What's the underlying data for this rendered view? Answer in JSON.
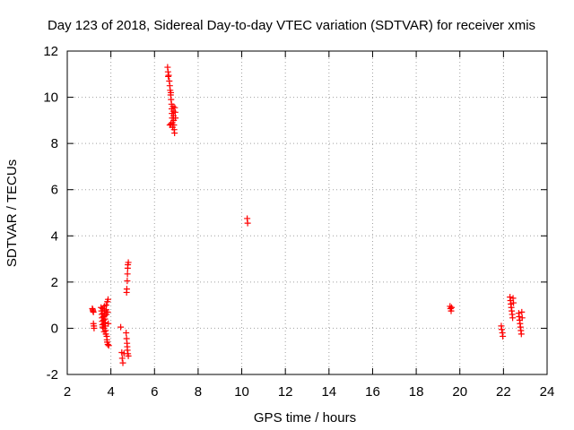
{
  "chart_data": {
    "type": "scatter",
    "title": "Day 123 of 2018, Sidereal Day-to-day VTEC variation (SDTVAR) for receiver xmis",
    "xlabel": "GPS time / hours",
    "ylabel": "SDTVAR / TECUs",
    "xlim": [
      2,
      24
    ],
    "ylim": [
      -2,
      12
    ],
    "xticks": [
      2,
      4,
      6,
      8,
      10,
      12,
      14,
      16,
      18,
      20,
      22,
      24
    ],
    "yticks": [
      -2,
      0,
      2,
      4,
      6,
      8,
      10,
      12
    ],
    "grid": true,
    "marker": "+",
    "color": "#ff0000",
    "series": [
      {
        "name": "SDTVAR",
        "points": [
          [
            3.15,
            0.85
          ],
          [
            3.17,
            0.8
          ],
          [
            3.18,
            0.75
          ],
          [
            3.2,
            0.7
          ],
          [
            3.2,
            0.2
          ],
          [
            3.22,
            0.1
          ],
          [
            3.23,
            0.0
          ],
          [
            3.55,
            0.9
          ],
          [
            3.57,
            0.75
          ],
          [
            3.58,
            0.6
          ],
          [
            3.59,
            0.45
          ],
          [
            3.6,
            0.3
          ],
          [
            3.61,
            0.15
          ],
          [
            3.62,
            0.05
          ],
          [
            3.62,
            0.85
          ],
          [
            3.64,
            0.65
          ],
          [
            3.65,
            0.5
          ],
          [
            3.66,
            0.35
          ],
          [
            3.67,
            0.2
          ],
          [
            3.68,
            0.0
          ],
          [
            3.69,
            -0.15
          ],
          [
            3.7,
            0.95
          ],
          [
            3.71,
            0.75
          ],
          [
            3.72,
            0.55
          ],
          [
            3.73,
            0.4
          ],
          [
            3.74,
            0.25
          ],
          [
            3.75,
            0.1
          ],
          [
            3.76,
            -0.1
          ],
          [
            3.77,
            -0.25
          ],
          [
            3.78,
            1.0
          ],
          [
            3.79,
            0.8
          ],
          [
            3.8,
            0.6
          ],
          [
            3.81,
            -0.35
          ],
          [
            3.82,
            -0.5
          ],
          [
            3.83,
            -0.6
          ],
          [
            3.84,
            1.15
          ],
          [
            3.85,
            0.7
          ],
          [
            3.86,
            -0.7
          ],
          [
            3.87,
            1.25
          ],
          [
            3.88,
            0.2
          ],
          [
            3.9,
            -0.75
          ],
          [
            4.45,
            0.05
          ],
          [
            4.5,
            -1.05
          ],
          [
            4.52,
            -1.3
          ],
          [
            4.55,
            -1.5
          ],
          [
            4.6,
            -1.1
          ],
          [
            4.7,
            -0.2
          ],
          [
            4.72,
            -0.45
          ],
          [
            4.74,
            -0.65
          ],
          [
            4.75,
            -0.8
          ],
          [
            4.76,
            -0.95
          ],
          [
            4.78,
            -1.1
          ],
          [
            4.8,
            -1.2
          ],
          [
            4.72,
            1.55
          ],
          [
            4.73,
            1.7
          ],
          [
            4.75,
            2.05
          ],
          [
            4.76,
            2.35
          ],
          [
            4.77,
            2.6
          ],
          [
            4.78,
            2.75
          ],
          [
            4.8,
            2.85
          ],
          [
            6.6,
            11.3
          ],
          [
            6.62,
            11.1
          ],
          [
            6.63,
            10.9
          ],
          [
            6.65,
            10.95
          ],
          [
            6.68,
            10.7
          ],
          [
            6.7,
            10.5
          ],
          [
            6.72,
            10.3
          ],
          [
            6.74,
            10.1
          ],
          [
            6.75,
            10.2
          ],
          [
            6.76,
            9.9
          ],
          [
            6.78,
            9.7
          ],
          [
            6.79,
            9.5
          ],
          [
            6.8,
            9.3
          ],
          [
            6.81,
            9.1
          ],
          [
            6.82,
            8.9
          ],
          [
            6.83,
            8.7
          ],
          [
            6.85,
            9.6
          ],
          [
            6.86,
            9.4
          ],
          [
            6.87,
            9.2
          ],
          [
            6.88,
            9.0
          ],
          [
            6.89,
            8.8
          ],
          [
            6.9,
            8.6
          ],
          [
            6.92,
            8.45
          ],
          [
            6.93,
            9.55
          ],
          [
            6.95,
            9.35
          ],
          [
            6.96,
            9.1
          ],
          [
            6.7,
            8.8
          ],
          [
            6.75,
            8.85
          ],
          [
            10.25,
            4.75
          ],
          [
            10.27,
            4.55
          ],
          [
            19.55,
            0.95
          ],
          [
            19.57,
            0.85
          ],
          [
            19.6,
            0.75
          ],
          [
            19.62,
            0.9
          ],
          [
            21.9,
            0.1
          ],
          [
            21.92,
            -0.05
          ],
          [
            21.95,
            -0.2
          ],
          [
            21.97,
            -0.35
          ],
          [
            22.3,
            1.35
          ],
          [
            22.32,
            1.2
          ],
          [
            22.34,
            1.05
          ],
          [
            22.36,
            0.9
          ],
          [
            22.38,
            0.75
          ],
          [
            22.4,
            0.6
          ],
          [
            22.42,
            0.45
          ],
          [
            22.44,
            1.3
          ],
          [
            22.46,
            1.1
          ],
          [
            22.7,
            0.65
          ],
          [
            22.72,
            0.5
          ],
          [
            22.74,
            0.35
          ],
          [
            22.76,
            0.2
          ],
          [
            22.78,
            0.05
          ],
          [
            22.8,
            -0.1
          ],
          [
            22.82,
            -0.25
          ],
          [
            22.84,
            0.7
          ],
          [
            22.86,
            0.45
          ]
        ]
      }
    ]
  }
}
